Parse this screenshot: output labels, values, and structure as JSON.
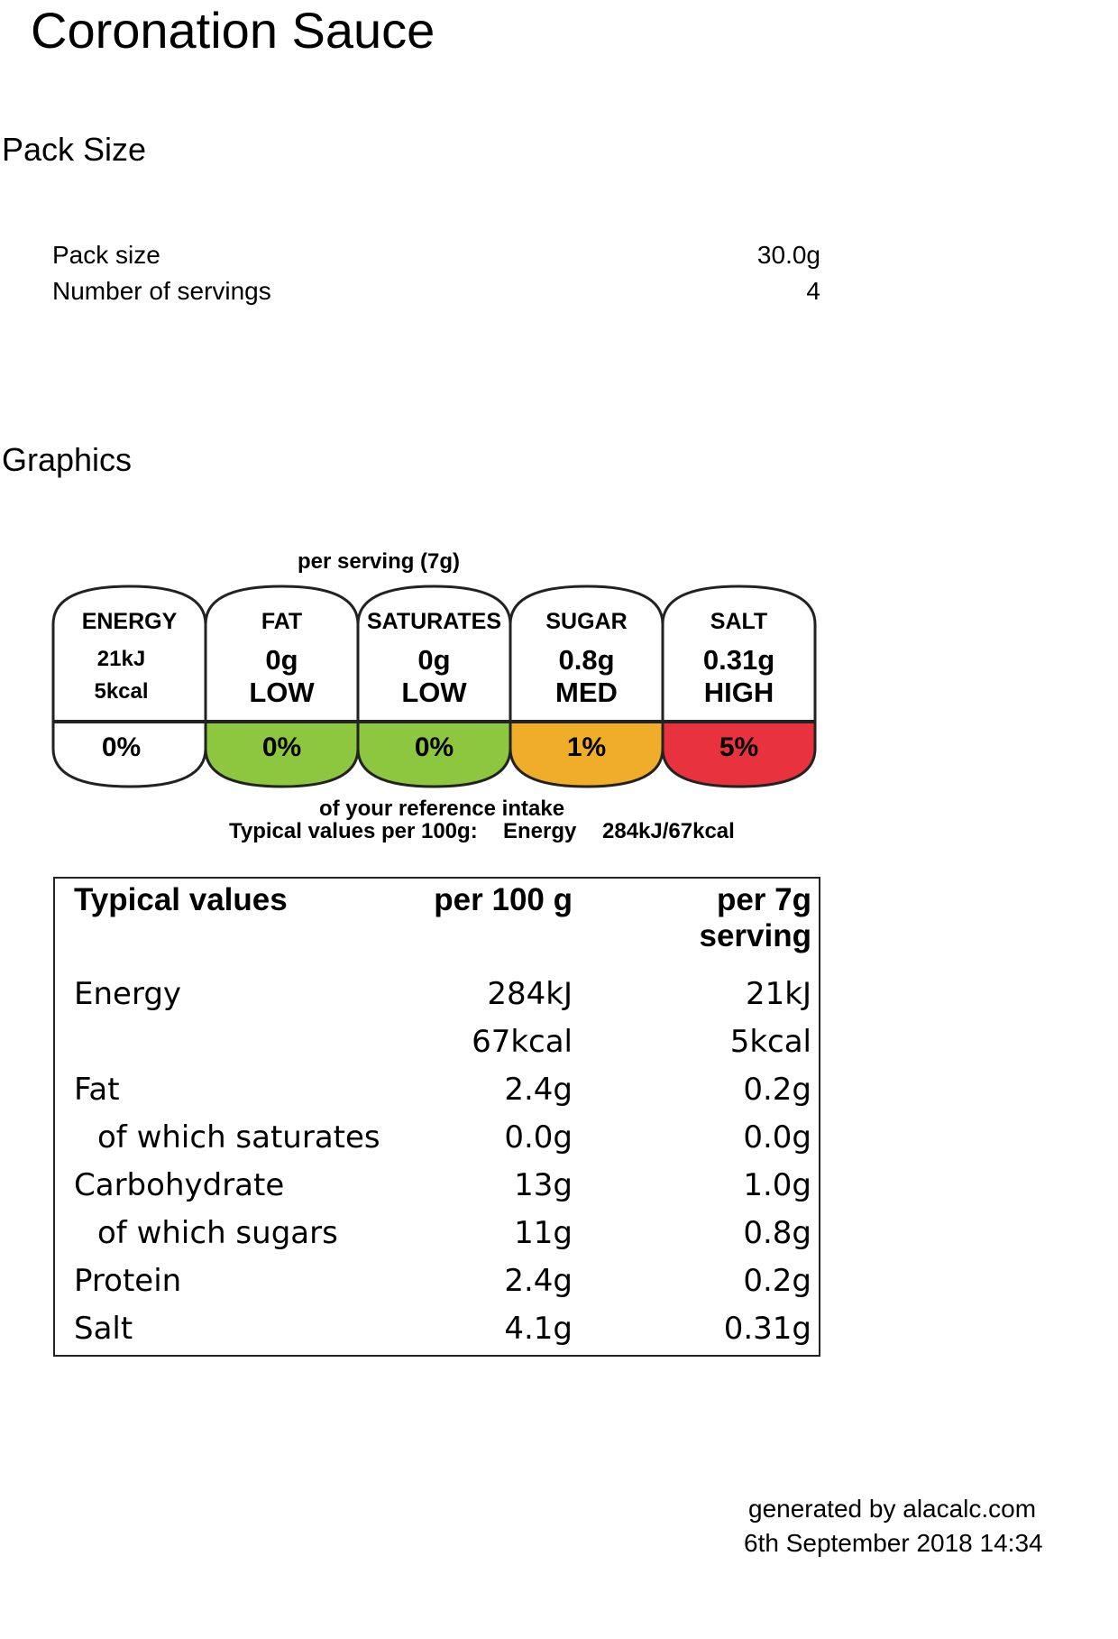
{
  "title": "Coronation Sauce",
  "pack_section": {
    "heading": "Pack Size",
    "rows": [
      {
        "label": "Pack size",
        "value": "30.0g"
      },
      {
        "label": "Number of servings",
        "value": "4"
      }
    ]
  },
  "graphics_section": {
    "heading": "Graphics",
    "label": {
      "per_serving": "per serving  (7g)",
      "panels": [
        {
          "name": "ENERGY",
          "value": "21kJ",
          "value2": "5kcal",
          "percent": "0%",
          "color": "#ffffff"
        },
        {
          "name": "FAT",
          "value": "0g",
          "value2": "LOW",
          "percent": "0%",
          "color": "#8dc63f"
        },
        {
          "name": "SATURATES",
          "value": "0g",
          "value2": "LOW",
          "percent": "0%",
          "color": "#8dc63f"
        },
        {
          "name": "SUGAR",
          "value": "0.8g",
          "value2": "MED",
          "percent": "1%",
          "color": "#f0ad2a"
        },
        {
          "name": "SALT",
          "value": "0.31g",
          "value2": "HIGH",
          "percent": "5%",
          "color": "#e8323e"
        }
      ],
      "reference_note": "of your reference intake",
      "typical_label": "Typical values per 100g:",
      "typical_energy_label": "Energy",
      "typical_energy_value": "284kJ/67kcal"
    }
  },
  "nutrition_table": {
    "headers": {
      "col1": "Typical values",
      "col2": "per 100 g",
      "col3_line1": "per 7g",
      "col3_line2": "serving"
    },
    "rows": [
      {
        "label": "Energy",
        "per100": "284kJ",
        "serving": "21kJ",
        "indent": false
      },
      {
        "label": "",
        "per100": "67kcal",
        "serving": "5kcal",
        "indent": false
      },
      {
        "label": "Fat",
        "per100": "2.4g",
        "serving": "0.2g",
        "indent": false
      },
      {
        "label": "of which saturates",
        "per100": "0.0g",
        "serving": "0.0g",
        "indent": true
      },
      {
        "label": "Carbohydrate",
        "per100": "13g",
        "serving": "1.0g",
        "indent": false
      },
      {
        "label": "of which sugars",
        "per100": "11g",
        "serving": "0.8g",
        "indent": true
      },
      {
        "label": "Protein",
        "per100": "2.4g",
        "serving": "0.2g",
        "indent": false
      },
      {
        "label": "Salt",
        "per100": "4.1g",
        "serving": "0.31g",
        "indent": false
      }
    ]
  },
  "footer": {
    "generated_by": "generated by alacalc.com",
    "timestamp": "6th September 2018 14:34"
  }
}
